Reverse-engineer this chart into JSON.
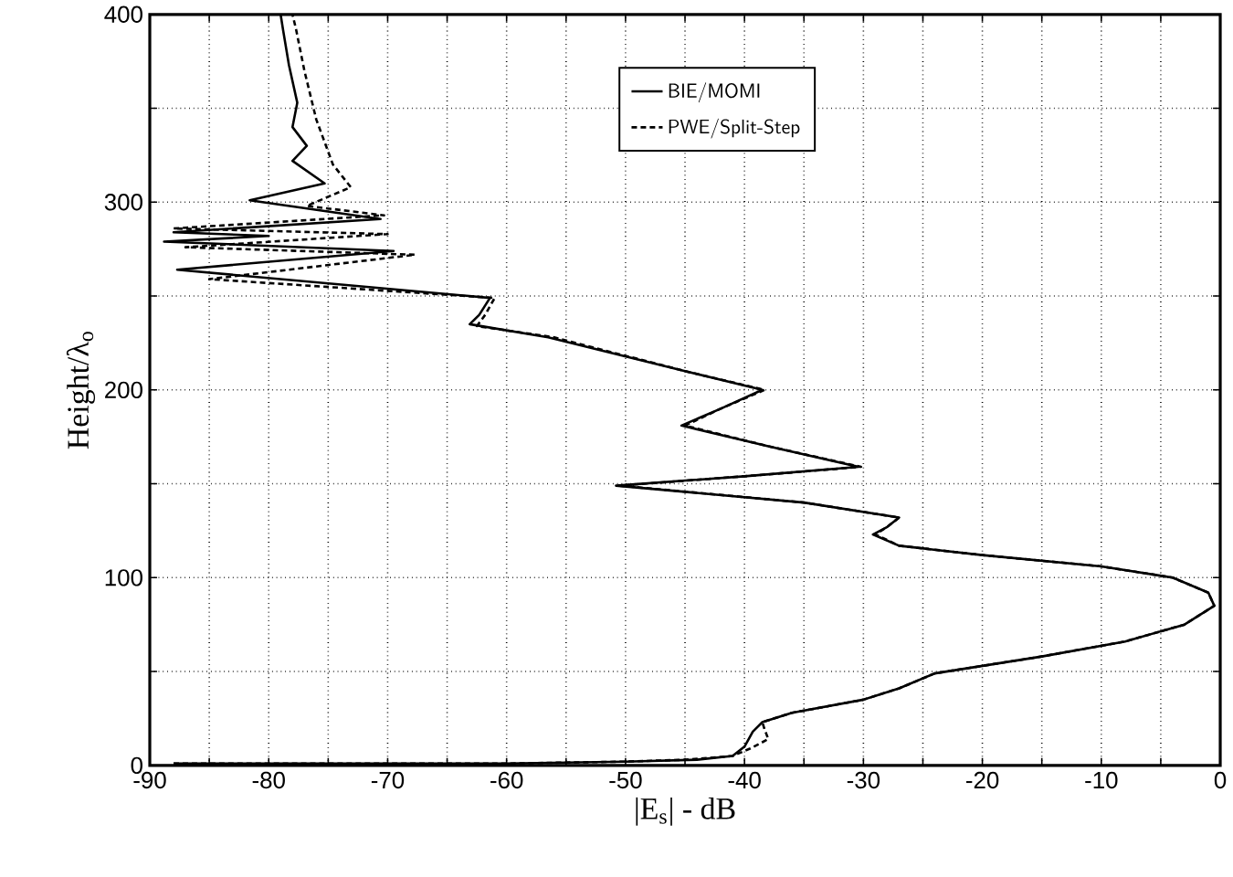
{
  "chart_data": {
    "type": "line",
    "xlabel": "|E$_{s}$| - dB",
    "ylabel": "Height/λ$_{o}$",
    "xlim": [
      -90,
      0
    ],
    "ylim": [
      0,
      400
    ],
    "xticks": [
      -90,
      {
        "value": -85,
        "label": null
      },
      -80,
      {
        "value": -75,
        "label": null
      },
      -70,
      {
        "value": -65,
        "label": null
      },
      -60,
      {
        "value": -55,
        "label": null
      },
      -50,
      {
        "value": -45,
        "label": null
      },
      -40,
      {
        "value": -35,
        "label": null
      },
      -30,
      {
        "value": -25,
        "label": null
      },
      -20,
      {
        "value": -15,
        "label": null
      },
      -10,
      {
        "value": -5,
        "label": null
      },
      0
    ],
    "yticks": [
      0,
      {
        "value": 50,
        "label": null
      },
      100,
      {
        "value": 150,
        "label": null
      },
      200,
      {
        "value": 250,
        "label": null
      },
      300,
      {
        "value": 350,
        "label": null
      },
      400
    ],
    "grid": true,
    "legend": "top",
    "marker": "none",
    "series": [
      {
        "name": "BIE/MOMI",
        "color": "#000000",
        "line_style": "solid",
        "x": [
          -88,
          -60,
          -50,
          -44,
          -41,
          -40,
          -39.3,
          -38.5,
          -36,
          -30,
          -27,
          -24,
          -15,
          -8,
          -3,
          -0.5,
          -1,
          -4,
          -10,
          -20,
          -27,
          -29.2,
          -28,
          -27,
          -35,
          -50.8,
          -40,
          -30.4,
          -38,
          -45.3,
          -42,
          -38.5,
          -45,
          -56.5,
          -63.1,
          -62.3,
          -61.4,
          -87.7,
          -69.5,
          -88.8,
          -80,
          -88,
          -70.6,
          -81.6,
          -75.3,
          -78,
          -76.8,
          -78,
          -77.6,
          -78.3,
          -78.8,
          -79
        ],
        "values": [
          1,
          1,
          2,
          3,
          5,
          10,
          18,
          23,
          28,
          35,
          41,
          49,
          58,
          66,
          75,
          85,
          92,
          100,
          106,
          112,
          117,
          123,
          127,
          132,
          140,
          149,
          154,
          159,
          170,
          181,
          190,
          200,
          210,
          228,
          235,
          240,
          249,
          264,
          274,
          279,
          282,
          284,
          291,
          301,
          310,
          322,
          330,
          340,
          353,
          373,
          392,
          400
        ]
      },
      {
        "name": "PWE/Split-Step",
        "color": "#000000",
        "line_style": "dashed",
        "x": [
          -88,
          -60,
          -50,
          -45,
          -41,
          -39.5,
          -38,
          -38.3,
          -38.5,
          -36,
          -30,
          -27,
          -24,
          -15,
          -8,
          -3,
          -0.5,
          -1,
          -4,
          -10,
          -20,
          -27,
          -29,
          -28,
          -27,
          -35,
          -50.5,
          -40,
          -30.2,
          -38,
          -45,
          -42,
          -38.3,
          -45,
          -56,
          -62.5,
          -61.8,
          -61,
          -85,
          -67.7,
          -87,
          -70,
          -88,
          -70.3,
          -76.8,
          -73.1,
          -74.6,
          -76,
          -77,
          -77.7,
          -78
        ],
        "values": [
          1,
          1,
          2,
          3,
          5,
          9,
          14,
          19,
          23,
          28,
          35,
          41,
          49,
          58,
          66,
          75,
          85,
          92,
          100,
          106,
          112,
          117,
          123,
          127,
          132,
          140,
          149,
          154,
          159,
          170,
          181,
          190,
          200,
          210,
          228,
          234,
          240,
          249,
          259,
          272,
          276,
          283,
          286,
          293,
          298,
          308,
          320,
          344,
          370,
          392,
          400
        ]
      }
    ]
  }
}
